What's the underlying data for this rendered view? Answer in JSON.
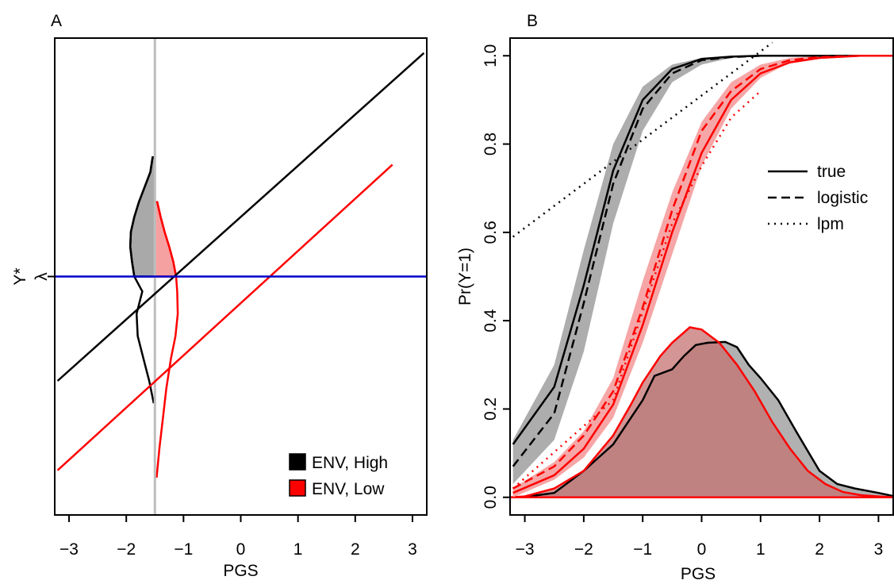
{
  "colors": {
    "black": "#000000",
    "red": "#ff0000",
    "blue": "#0000cc",
    "gray": "#bebebe",
    "gray_fill": "#a9a9a9",
    "pink_fill": "#f6a1a1",
    "mixed_fill": "#c57272"
  },
  "chart_data": [
    {
      "type": "line",
      "panel_label": "A",
      "xlabel": "PGS",
      "ylabel": "Y*",
      "xlim": [
        -3.25,
        3.25
      ],
      "ylim": [
        -3.2,
        3.2
      ],
      "xticks": [
        -3,
        -2,
        -1,
        0,
        1,
        2,
        3
      ],
      "xtick_labels": [
        "−3",
        "−2",
        "−1",
        "0",
        "1",
        "2",
        "3"
      ],
      "y_special_tick": {
        "value": 0,
        "label": "λ"
      },
      "vertical_line_x": -1.5,
      "series": [
        {
          "name": "ENV, High",
          "color": "black",
          "x": [
            -3.2,
            3.2
          ],
          "y": [
            -1.4,
            3.0
          ]
        },
        {
          "name": "ENV, Low",
          "color": "red",
          "x": [
            -3.2,
            2.65
          ],
          "y": [
            -2.6,
            1.5
          ]
        },
        {
          "color": "blue",
          "x": [
            -3.25,
            3.25
          ],
          "y": [
            0,
            0
          ]
        }
      ],
      "densities": [
        {
          "name": "ENV, High",
          "color": "black",
          "fill": "gray_fill",
          "x_base": -1.5,
          "y": [
            -1.7,
            -1.4,
            -1.1,
            -0.8,
            -0.5,
            -0.2,
            0,
            0.2,
            0.4,
            0.6,
            0.8,
            1.0,
            1.2,
            1.4,
            1.6
          ],
          "width": [
            0.02,
            0.1,
            0.2,
            0.3,
            0.32,
            0.22,
            0.36,
            0.4,
            0.43,
            0.42,
            0.36,
            0.28,
            0.18,
            0.08,
            0.04
          ]
        },
        {
          "name": "ENV, Low",
          "color": "red",
          "fill": "pink_fill",
          "x_base": -1.5,
          "y": [
            -2.7,
            -2.3,
            -1.9,
            -1.5,
            -1.1,
            -0.8,
            -0.5,
            -0.2,
            0,
            0.2,
            0.4,
            0.6,
            0.8,
            1.0
          ],
          "width": [
            0.03,
            0.08,
            0.14,
            0.2,
            0.28,
            0.36,
            0.4,
            0.39,
            0.37,
            0.32,
            0.25,
            0.17,
            0.1,
            0.04
          ]
        }
      ],
      "legend": {
        "position": "bottom-right",
        "entries": [
          {
            "label": "ENV, High",
            "color": "black"
          },
          {
            "label": "ENV, Low",
            "color": "red"
          }
        ]
      }
    },
    {
      "type": "line",
      "panel_label": "B",
      "xlabel": "PGS",
      "ylabel": "Pr(Y=1)",
      "xlim": [
        -3.25,
        3.25
      ],
      "ylim": [
        -0.04,
        1.04
      ],
      "xticks": [
        -3,
        -2,
        -1,
        0,
        1,
        2,
        3
      ],
      "xtick_labels": [
        "−3",
        "−2",
        "−1",
        "0",
        "1",
        "2",
        "3"
      ],
      "yticks": [
        0,
        0.2,
        0.4,
        0.6,
        0.8,
        1.0
      ],
      "ytick_labels": [
        "0.0",
        "0.2",
        "0.4",
        "0.6",
        "0.8",
        "1.0"
      ],
      "bands": [
        {
          "color": "gray_fill",
          "x": [
            -3.2,
            -2.5,
            -2.0,
            -1.5,
            -1.0,
            -0.5,
            0.0,
            0.5,
            1.0,
            2.0
          ],
          "lower": [
            0.03,
            0.13,
            0.33,
            0.62,
            0.83,
            0.94,
            0.98,
            0.995,
            1.0,
            1.0
          ],
          "upper": [
            0.13,
            0.3,
            0.56,
            0.8,
            0.93,
            0.98,
            0.995,
            1.0,
            1.0,
            1.0
          ]
        },
        {
          "color": "pink_fill",
          "x": [
            -3.2,
            -2.5,
            -2.0,
            -1.5,
            -1.0,
            -0.5,
            0.0,
            0.5,
            1.0,
            1.5,
            2.0,
            2.7
          ],
          "lower": [
            0.0,
            0.04,
            0.09,
            0.18,
            0.35,
            0.55,
            0.75,
            0.88,
            0.95,
            0.985,
            0.995,
            1.0
          ],
          "upper": [
            0.02,
            0.08,
            0.15,
            0.27,
            0.49,
            0.69,
            0.85,
            0.94,
            0.98,
            0.995,
            1.0,
            1.0
          ]
        }
      ],
      "series": [
        {
          "name": "true",
          "group": "ENV, High",
          "color": "black",
          "dash": "solid",
          "x": [
            -3.2,
            -2.5,
            -2.0,
            -1.5,
            -1.0,
            -0.5,
            0.0,
            0.5,
            1.0,
            2.0,
            3.25
          ],
          "y": [
            0.12,
            0.25,
            0.48,
            0.74,
            0.9,
            0.97,
            0.993,
            0.998,
            1.0,
            1.0,
            1.0
          ]
        },
        {
          "name": "logistic",
          "group": "ENV, High",
          "color": "black",
          "dash": "dashed",
          "x": [
            -3.2,
            -2.5,
            -2.0,
            -1.5,
            -1.0,
            -0.5,
            0.0,
            0.5,
            1.0,
            2.0,
            3.25
          ],
          "y": [
            0.07,
            0.19,
            0.44,
            0.71,
            0.88,
            0.96,
            0.99,
            0.997,
            1.0,
            1.0,
            1.0
          ]
        },
        {
          "name": "lpm",
          "group": "ENV, High",
          "color": "black",
          "dash": "dotted",
          "x": [
            -3.2,
            1.2
          ],
          "y": [
            0.59,
            1.03
          ]
        },
        {
          "name": "true",
          "group": "ENV, Low",
          "color": "red",
          "dash": "solid",
          "x": [
            -3.2,
            -2.5,
            -2.0,
            -1.5,
            -1.0,
            -0.5,
            0.0,
            0.5,
            1.0,
            1.5,
            2.0,
            2.7,
            3.25
          ],
          "y": [
            0.01,
            0.05,
            0.11,
            0.21,
            0.39,
            0.6,
            0.78,
            0.9,
            0.96,
            0.985,
            0.995,
            1.0,
            1.0
          ]
        },
        {
          "name": "logistic",
          "group": "ENV, Low",
          "color": "red",
          "dash": "dashed",
          "x": [
            -3.2,
            -2.5,
            -2.0,
            -1.5,
            -1.0,
            -0.5,
            0.0,
            0.5,
            1.0,
            1.5,
            2.0,
            2.7,
            3.25
          ],
          "y": [
            0.02,
            0.07,
            0.14,
            0.24,
            0.43,
            0.65,
            0.83,
            0.92,
            0.97,
            0.99,
            0.997,
            1.0,
            1.0
          ]
        },
        {
          "name": "lpm",
          "group": "ENV, Low",
          "color": "red",
          "dash": "dotted",
          "x": [
            -3.2,
            -1.5,
            -1.0,
            -0.5,
            0.0,
            0.5,
            1.0
          ],
          "y": [
            0.02,
            0.22,
            0.42,
            0.62,
            0.75,
            0.86,
            0.92
          ]
        }
      ],
      "densities": [
        {
          "group": "ENV, High",
          "color": "black",
          "fill": "gray_fill",
          "x": [
            -3.25,
            -3.0,
            -2.5,
            -2.0,
            -1.5,
            -1.0,
            -0.8,
            -0.5,
            -0.3,
            -0.1,
            0.1,
            0.4,
            0.6,
            0.8,
            1.0,
            1.3,
            1.6,
            2.0,
            2.3,
            2.6,
            3.0,
            3.25
          ],
          "y": [
            0,
            0.001,
            0.01,
            0.06,
            0.12,
            0.22,
            0.275,
            0.29,
            0.32,
            0.345,
            0.35,
            0.352,
            0.34,
            0.3,
            0.27,
            0.22,
            0.15,
            0.06,
            0.03,
            0.02,
            0.01,
            0.003
          ]
        },
        {
          "group": "ENV, Low",
          "color": "red",
          "fill": "pink_fill",
          "x": [
            -3.25,
            -3.0,
            -2.5,
            -2.0,
            -1.5,
            -1.2,
            -1.0,
            -0.7,
            -0.5,
            -0.2,
            0.0,
            0.3,
            0.6,
            0.9,
            1.2,
            1.5,
            1.8,
            2.1,
            2.4,
            2.7,
            3.0,
            3.25
          ],
          "y": [
            0,
            0.002,
            0.02,
            0.06,
            0.14,
            0.21,
            0.26,
            0.32,
            0.35,
            0.385,
            0.38,
            0.35,
            0.3,
            0.24,
            0.17,
            0.11,
            0.06,
            0.03,
            0.012,
            0.005,
            0.002,
            0
          ]
        }
      ],
      "legend": {
        "position": "right",
        "entries": [
          {
            "label": "true",
            "dash": "solid"
          },
          {
            "label": "logistic",
            "dash": "dashed"
          },
          {
            "label": "lpm",
            "dash": "dotted"
          }
        ]
      }
    }
  ]
}
